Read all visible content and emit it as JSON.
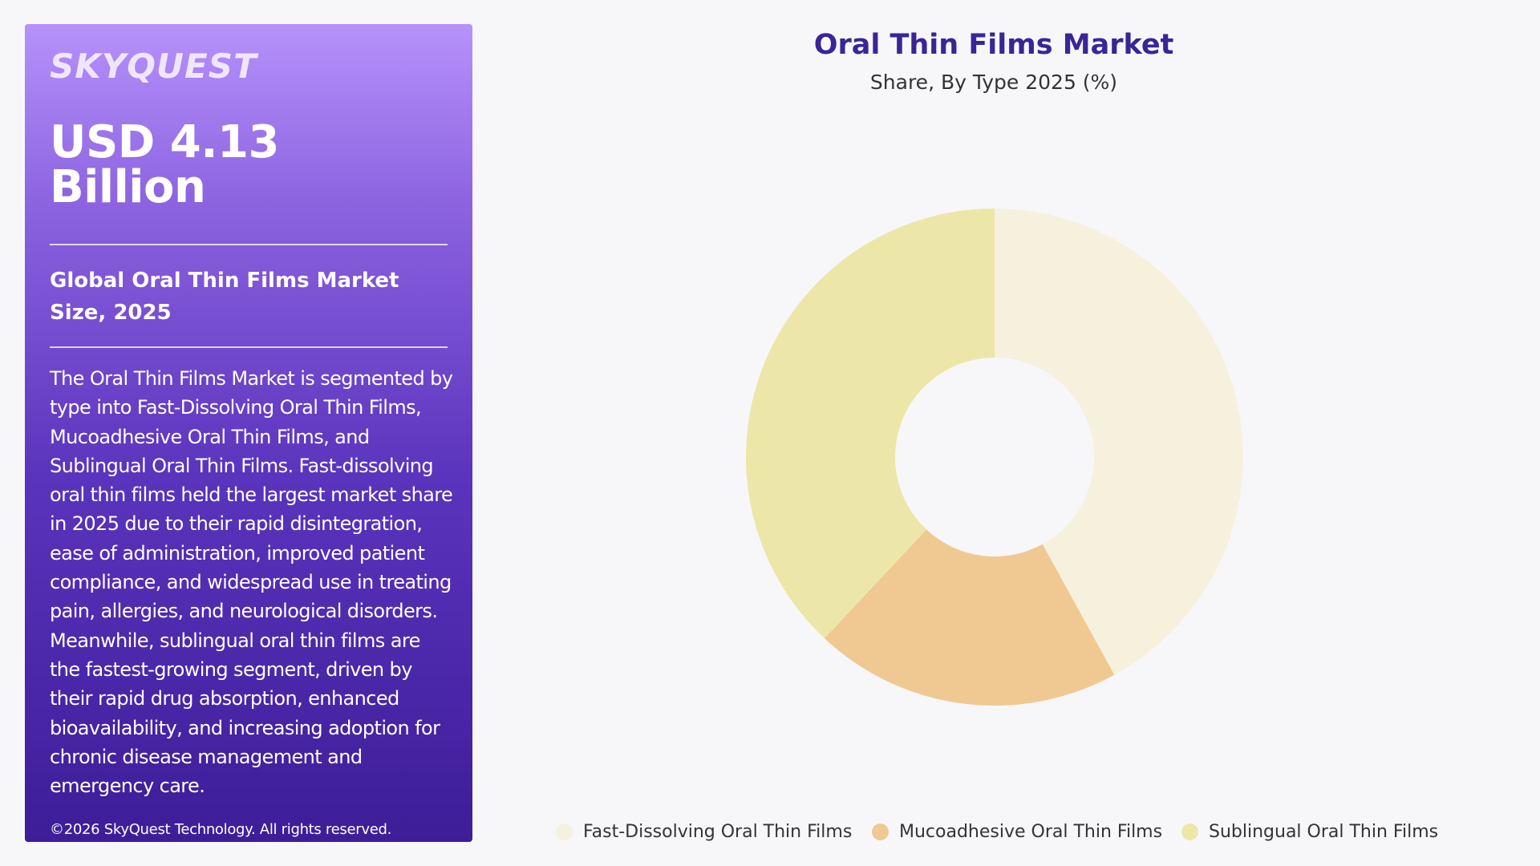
{
  "brand": {
    "logo_text": "SKYQUEST"
  },
  "panel": {
    "headline_value": "USD 4.13 Billion",
    "market_size_label": "Global Oral Thin Films Market Size, 2025",
    "description": "The Oral Thin Films Market is segmented by type into Fast-Dissolving Oral Thin Films, Mucoadhesive Oral Thin Films, and Sublingual Oral Thin Films. Fast-dissolving oral thin films held the largest market share in 2025 due to their rapid disintegration, ease of administration, improved patient compliance, and widespread use in treating pain, allergies, and neurological disorders. Meanwhile, sublingual oral thin films are the fastest-growing segment, driven by their rapid drug absorption, enhanced bioavailability, and increasing adoption for chronic disease management and emergency care.",
    "copyright": "©2026 SkyQuest Technology. All rights reserved.",
    "gradient_top": "#b692fb",
    "gradient_bottom": "#3d1d98"
  },
  "chart_data": {
    "type": "pie",
    "style": "donut",
    "title": "Oral Thin Films Market",
    "subtitle": "Share, By Type 2025 (%)",
    "categories": [
      "Fast-Dissolving Oral Thin Films",
      "Mucoadhesive Oral Thin Films",
      "Sublingual Oral Thin Films"
    ],
    "values": [
      42,
      20,
      38
    ],
    "colors": [
      "#f6f1dd",
      "#f0c992",
      "#ece7a8"
    ],
    "legend_position": "bottom"
  }
}
